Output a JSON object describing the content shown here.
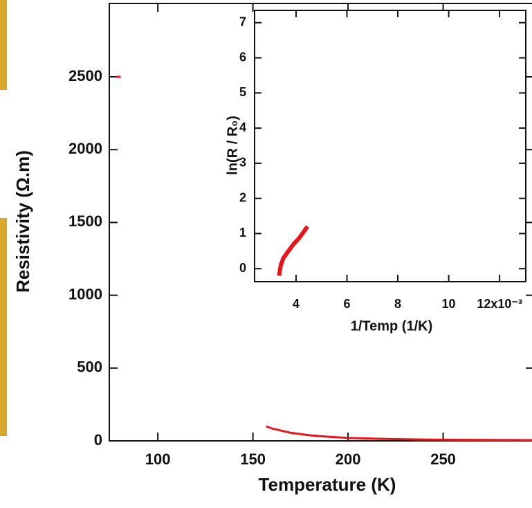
{
  "chart_data": [
    {
      "type": "line",
      "x_label": "Temperature (K)",
      "y_label": "Resistivity (Ω.m)",
      "xlim": [
        74.5,
        297.8
      ],
      "ylim": [
        0,
        3004
      ],
      "xticks": [
        100,
        150,
        200,
        250
      ],
      "yticks": [
        0,
        500,
        1000,
        1500,
        2000,
        2500
      ],
      "series": [
        {
          "color": "#e8141c",
          "x": [
            78,
            80.5
          ],
          "values": [
            2500,
            2500
          ]
        },
        {
          "color": "#e8141c",
          "x": [
            157,
            160,
            170,
            180,
            190,
            200,
            220,
            240,
            260,
            280,
            297
          ],
          "values": [
            100,
            85,
            55,
            38,
            28,
            20,
            13,
            9,
            7,
            6,
            5
          ]
        }
      ]
    },
    {
      "type": "line",
      "x_label": "1/Temp (1/K)",
      "y_label": "ln(R / R₀)",
      "xlim": [
        2.37,
        13.03
      ],
      "ylim": [
        -0.37,
        7.35
      ],
      "xticks": [
        4,
        6,
        8,
        10,
        {
          "value": 12,
          "label": "12x10⁻³"
        }
      ],
      "yticks": [
        0,
        1,
        2,
        3,
        4,
        5,
        6,
        7
      ],
      "series": [
        {
          "color": "#e8141c",
          "x": [
            3.33,
            3.4,
            3.5,
            3.7,
            3.9,
            4.1,
            4.3,
            4.45
          ],
          "values": [
            -0.2,
            0.1,
            0.3,
            0.5,
            0.7,
            0.85,
            1.05,
            1.2
          ]
        }
      ]
    }
  ]
}
